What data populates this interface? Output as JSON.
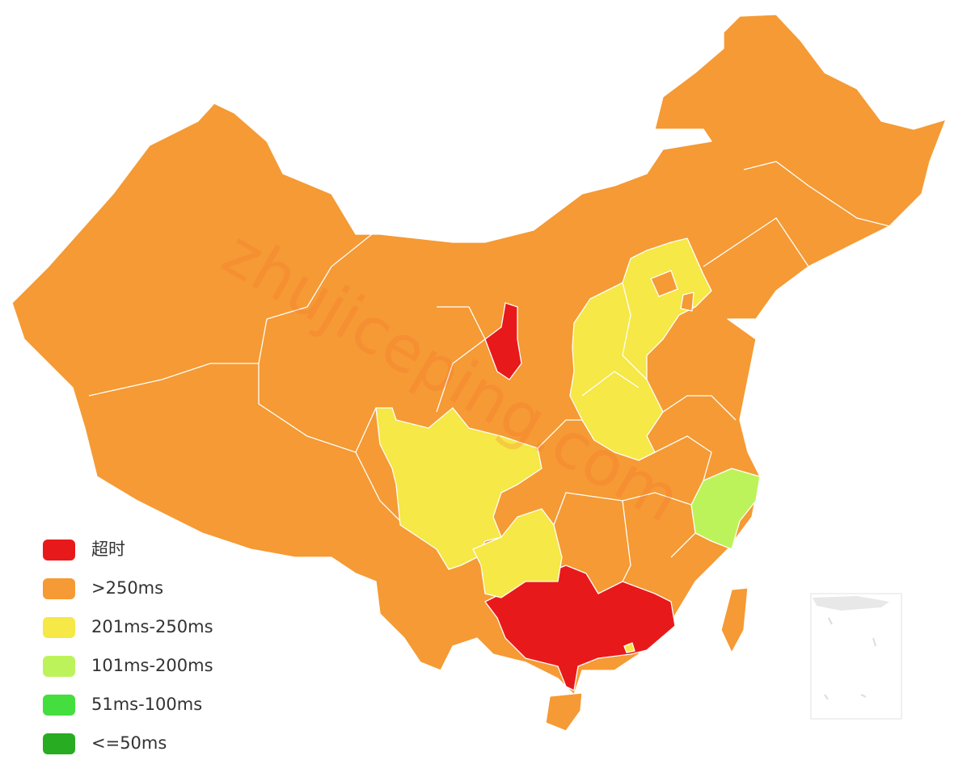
{
  "legend": {
    "items": [
      {
        "label": "超时",
        "color": "#e8191b"
      },
      {
        "label": ">250ms",
        "color": "#f59a34"
      },
      {
        "label": "201ms-250ms",
        "color": "#f5e847"
      },
      {
        "label": "101ms-200ms",
        "color": "#bdf35a"
      },
      {
        "label": "51ms-100ms",
        "color": "#44de3f"
      },
      {
        "label": "<=50ms",
        "color": "#28ac22"
      }
    ]
  },
  "watermark": "zhujiceping.com"
}
